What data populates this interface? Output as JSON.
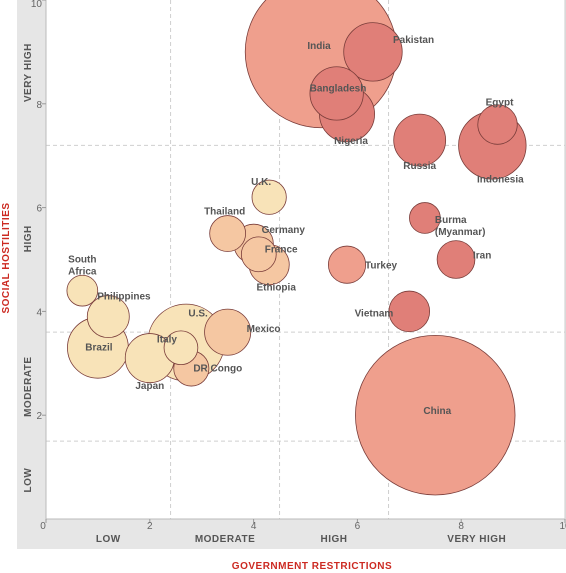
{
  "chart_data": {
    "type": "scatter",
    "subtype": "bubble",
    "xlabel": "GOVERNMENT RESTRICTIONS",
    "ylabel": "SOCIAL HOSTILITIES",
    "xlim": [
      0,
      10
    ],
    "ylim": [
      0,
      10
    ],
    "x_ticks": [
      "0",
      "2",
      "4",
      "6",
      "8",
      "10"
    ],
    "y_ticks": [
      "2",
      "4",
      "6",
      "8",
      "10"
    ],
    "x_bands": [
      "LOW",
      "MODERATE",
      "HIGH",
      "VERY HIGH"
    ],
    "y_bands": [
      "LOW",
      "MODERATE",
      "HIGH",
      "VERY HIGH"
    ],
    "x_band_edges": [
      2.4,
      4.5,
      6.6
    ],
    "y_band_edges": [
      1.5,
      3.6,
      7.2
    ],
    "grid": true,
    "colors": {
      "low": "#f8e3b8",
      "moderate": "#f5c7a2",
      "high": "#ef9f8d",
      "very_high": "#e07f78",
      "stroke": "#7a3d3a",
      "axis_title": "#cc2a22",
      "background": "#e6e6e6",
      "plot_background": "#ffffff"
    },
    "points": [
      {
        "label": "India",
        "x": 5.3,
        "y": 9.0,
        "size": 1210,
        "level": "high"
      },
      {
        "label": "Pakistan",
        "x": 6.3,
        "y": 9.0,
        "size": 180,
        "level": "very_high"
      },
      {
        "label": "Bangladesh",
        "x": 5.6,
        "y": 8.2,
        "size": 150,
        "level": "very_high"
      },
      {
        "label": "Nigeria",
        "x": 5.8,
        "y": 7.8,
        "size": 160,
        "level": "very_high"
      },
      {
        "label": "Egypt",
        "x": 8.7,
        "y": 7.6,
        "size": 82,
        "level": "very_high"
      },
      {
        "label": "Russia",
        "x": 7.2,
        "y": 7.3,
        "size": 142,
        "level": "very_high"
      },
      {
        "label": "Indonesia",
        "x": 8.6,
        "y": 7.2,
        "size": 240,
        "level": "very_high"
      },
      {
        "label": "U.K.",
        "x": 4.3,
        "y": 6.2,
        "size": 62,
        "level": "low"
      },
      {
        "label": "Thailand",
        "x": 3.5,
        "y": 5.5,
        "size": 68,
        "level": "moderate"
      },
      {
        "label": "Germany",
        "x": 4.0,
        "y": 5.3,
        "size": 82,
        "level": "moderate"
      },
      {
        "label": "France",
        "x": 4.1,
        "y": 5.1,
        "size": 64,
        "level": "moderate"
      },
      {
        "label": "Ethiopia",
        "x": 4.3,
        "y": 4.9,
        "size": 85,
        "level": "moderate"
      },
      {
        "label": "Burma (Myanmar)",
        "x": 7.3,
        "y": 5.8,
        "size": 50,
        "level": "very_high"
      },
      {
        "label": "Iran",
        "x": 7.9,
        "y": 5.0,
        "size": 75,
        "level": "very_high"
      },
      {
        "label": "Turkey",
        "x": 5.8,
        "y": 4.9,
        "size": 73,
        "level": "high"
      },
      {
        "label": "Vietnam",
        "x": 7.0,
        "y": 4.0,
        "size": 87,
        "level": "very_high"
      },
      {
        "label": "South Africa",
        "x": 0.7,
        "y": 4.4,
        "size": 50,
        "level": "low"
      },
      {
        "label": "Philippines",
        "x": 1.2,
        "y": 3.9,
        "size": 93,
        "level": "low"
      },
      {
        "label": "U.S.",
        "x": 2.7,
        "y": 3.4,
        "size": 310,
        "level": "low"
      },
      {
        "label": "Italy",
        "x": 2.6,
        "y": 3.3,
        "size": 60,
        "level": "low"
      },
      {
        "label": "Mexico",
        "x": 3.5,
        "y": 3.6,
        "size": 112,
        "level": "moderate"
      },
      {
        "label": "Brazil",
        "x": 1.0,
        "y": 3.3,
        "size": 195,
        "level": "low"
      },
      {
        "label": "Japan",
        "x": 2.0,
        "y": 3.1,
        "size": 127,
        "level": "low"
      },
      {
        "label": "DR Congo",
        "x": 2.8,
        "y": 2.9,
        "size": 65,
        "level": "moderate"
      },
      {
        "label": "China",
        "x": 7.5,
        "y": 2.0,
        "size": 1340,
        "level": "high"
      }
    ]
  }
}
